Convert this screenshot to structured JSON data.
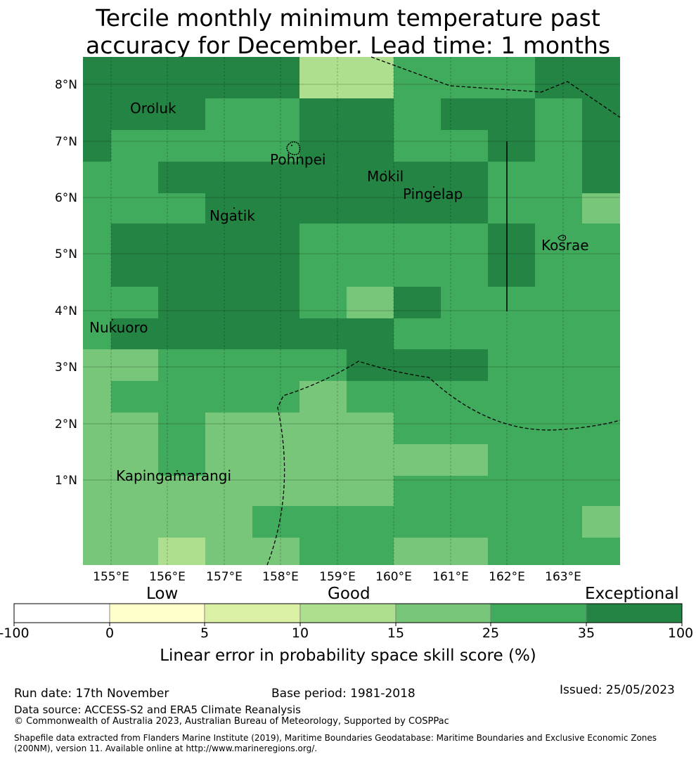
{
  "title": {
    "line1": "Tercile monthly minimum temperature past",
    "line2": "accuracy for December. Lead time: 1 months"
  },
  "map": {
    "lat_labels": [
      "8°N",
      "7°N",
      "6°N",
      "5°N",
      "4°N",
      "3°N",
      "2°N",
      "1°N"
    ],
    "lon_labels": [
      "155°E",
      "156°E",
      "157°E",
      "158°E",
      "159°E",
      "160°E",
      "161°E",
      "162°E",
      "163°E"
    ],
    "places": [
      "Oroluk",
      "Pohnpei",
      "Mokil",
      "Pingelap",
      "Ngatik",
      "Kosrae",
      "Nukuoro",
      "Kapingamarangi"
    ],
    "colors": {
      "c1": "#daf0a4",
      "c2": "#addf8e",
      "c3": "#78c679",
      "c4": "#41ab5d",
      "c5": "#238443"
    }
  },
  "colorbar": {
    "categories": [
      "Low",
      "Good",
      "Exceptional"
    ],
    "ticks": [
      "-100",
      "0",
      "5",
      "10",
      "15",
      "25",
      "35",
      "100"
    ],
    "colors": [
      "#ffffff",
      "#ffffcc",
      "#daf0a4",
      "#addf8e",
      "#78c679",
      "#41ab5d",
      "#238443"
    ],
    "label": "Linear error in probability space skill score (%)"
  },
  "footer": {
    "run_date": "Run date: 17th November",
    "base_period": "Base period: 1981-2018",
    "issued": "Issued: 25/05/2023",
    "data_source": "Data source: ACCESS-S2 and ERA5 Climate Reanalysis",
    "copyright": "© Commonwealth of Australia 2023, Australian Bureau of Meteorology, Supported by COSPPac",
    "shapefile": "Shapefile data extracted from Flanders Marine Institute (2019), Maritime Boundaries Geodatabase: Maritime Boundaries and Exclusive Economic Zones (200NM), version 11. Available online at http://www.marineregions.org/."
  }
}
